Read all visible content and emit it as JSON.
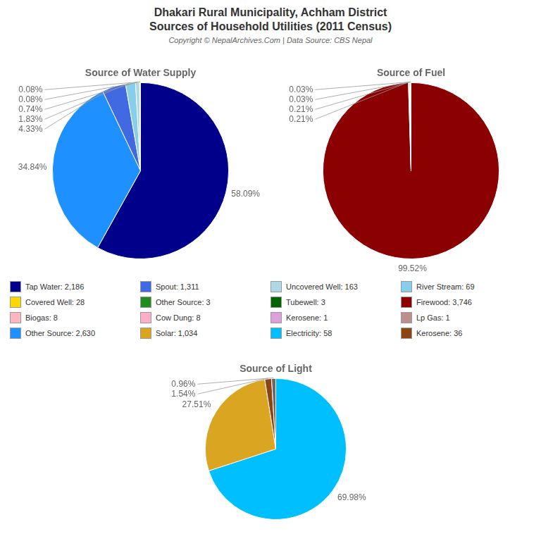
{
  "title": [
    "Dhakari Rural Municipality, Achham District",
    "Sources of Household Utilities (2011 Census)"
  ],
  "subtitle": "Copyright © NepalArchives.Com | Data Source: CBS Nepal",
  "series": [
    {
      "name": "Tap Water: 2,186",
      "color": "#00008B"
    },
    {
      "name": "Spout: 1,311",
      "color": "#4169E1"
    },
    {
      "name": "Uncovered Well: 163",
      "color": "#ADD8E6"
    },
    {
      "name": "River Stream: 69",
      "color": "#87CEEB"
    },
    {
      "name": "Covered Well: 28",
      "color": "#FFD700"
    },
    {
      "name": "Other Source: 3",
      "color": "#228B22"
    },
    {
      "name": "Tubewell: 3",
      "color": "#006400"
    },
    {
      "name": "Firewood: 3,746",
      "color": "#8B0000"
    },
    {
      "name": "Biogas: 8",
      "color": "#FFB6C1"
    },
    {
      "name": "Cow Dung: 8",
      "color": "#FFB0C8"
    },
    {
      "name": "Kerosene: 1",
      "color": "#DDA0DD"
    },
    {
      "name": "Lp Gas: 1",
      "color": "#BC8F8F"
    },
    {
      "name": "Other Source: 2,630",
      "color": "#1E90FF"
    },
    {
      "name": "Solar: 1,034",
      "color": "#DAA520"
    },
    {
      "name": "Electricity: 58",
      "color": "#00BFFF"
    },
    {
      "name": "Kerosene: 36",
      "color": "#8B4513"
    }
  ],
  "chart_data": [
    {
      "type": "pie",
      "title": "Source of Water Supply",
      "values": [
        58.09,
        34.84,
        4.33,
        1.83,
        0.74,
        0.08,
        0.08
      ],
      "value_labels": [
        "58.09%",
        "34.84%",
        "4.33%",
        "1.83%",
        "0.74%",
        "0.08%",
        "0.08%"
      ],
      "colors": [
        "#00008B",
        "#1E90FF",
        "#4169E1",
        "#87CEEB",
        "#ADD8E6",
        "#FFD700",
        "#228B22"
      ],
      "data_labels": true
    },
    {
      "type": "pie",
      "title": "Source of Fuel",
      "values": [
        99.52,
        0.21,
        0.21,
        0.03,
        0.03
      ],
      "value_labels": [
        "99.52%",
        "0.21%",
        "0.21%",
        "0.03%",
        "0.03%"
      ],
      "colors": [
        "#8B0000",
        "#FFB6C1",
        "#FFD700",
        "#FFB6C1",
        "#DDA0DD"
      ],
      "data_labels": true
    },
    {
      "type": "pie",
      "title": "Source of Light",
      "values": [
        69.98,
        27.51,
        1.54,
        0.96
      ],
      "value_labels": [
        "69.98%",
        "27.51%",
        "1.54%",
        "0.96%"
      ],
      "colors": [
        "#00BFFF",
        "#DAA520",
        "#8B4513",
        "#696969"
      ],
      "data_labels": true
    }
  ]
}
